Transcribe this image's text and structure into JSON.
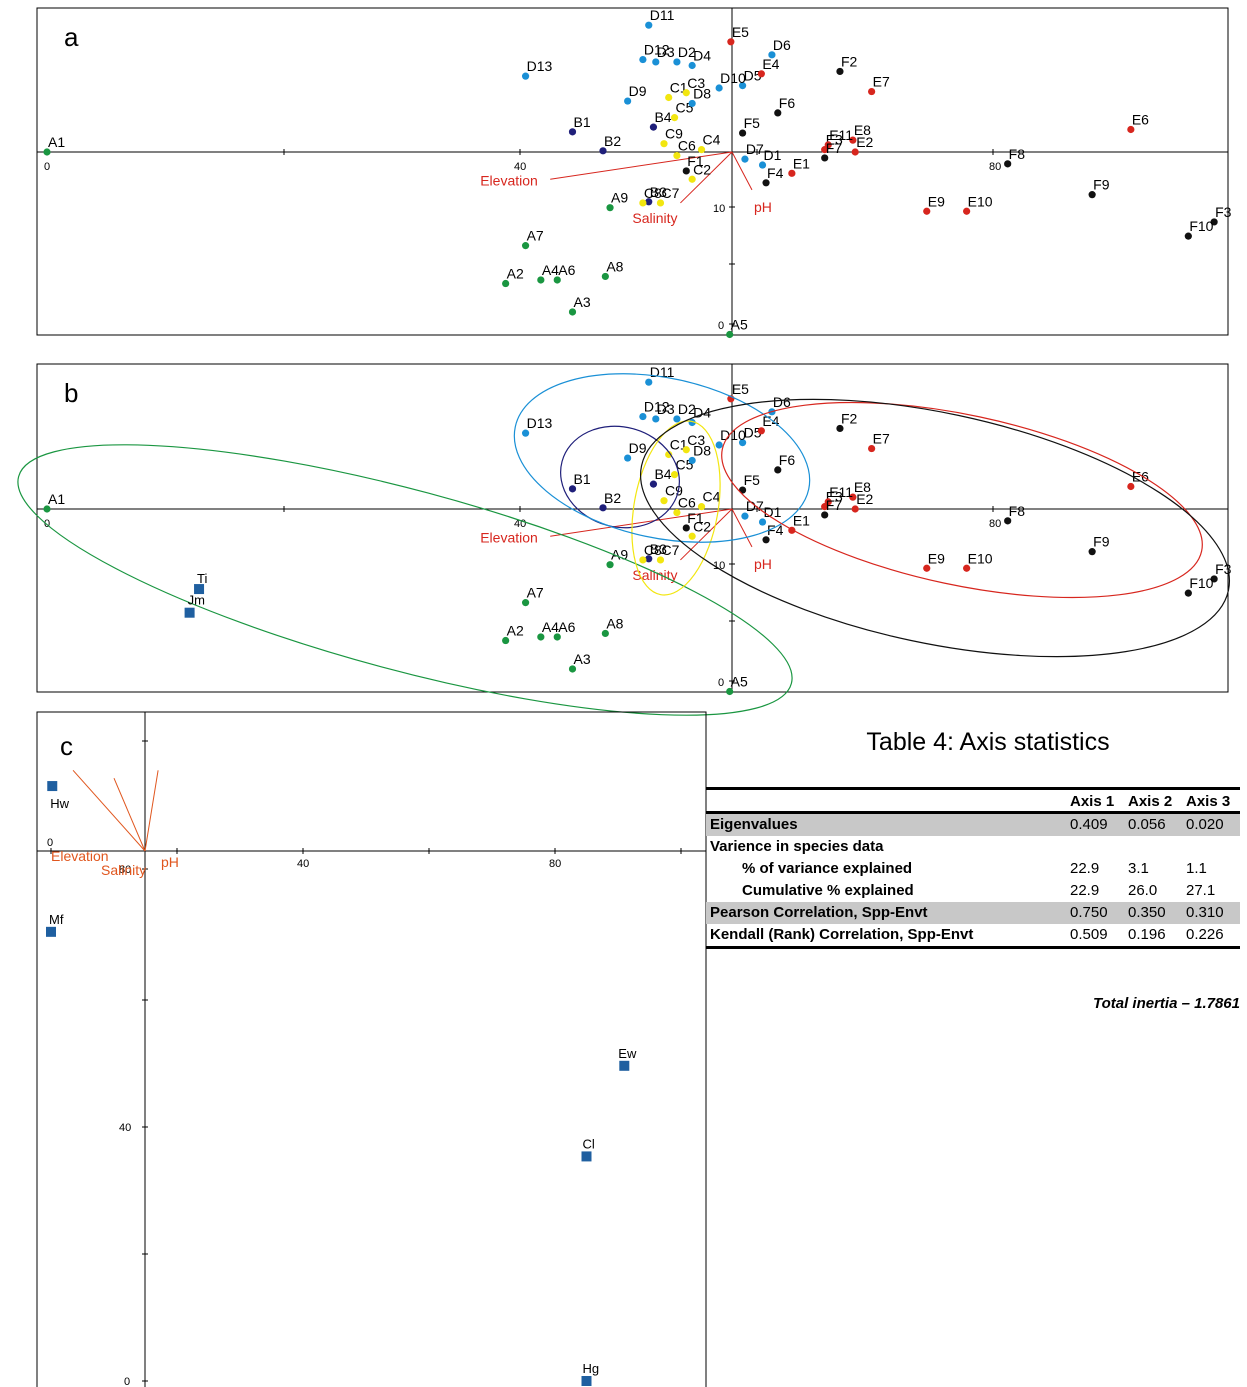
{
  "chart_data": [
    {
      "panel": "a",
      "type": "scatter",
      "ticks": {
        "axis1": [
          "0",
          "40",
          "80"
        ],
        "axis2": [
          "10",
          "0"
        ]
      },
      "series": [
        {
          "group": "A",
          "color": "#1a9641",
          "points": [
            {
              "label": "A1",
              "x": 0.0,
              "y": 0.0
            },
            {
              "label": "A2",
              "x": 39.1,
              "y": -11.1
            },
            {
              "label": "A3",
              "x": 44.8,
              "y": -13.5
            },
            {
              "label": "A4",
              "x": 42.1,
              "y": -10.8
            },
            {
              "label": "A5",
              "x": 58.2,
              "y": -15.4
            },
            {
              "label": "A6",
              "x": 43.5,
              "y": -10.8
            },
            {
              "label": "A7",
              "x": 40.8,
              "y": -7.9
            },
            {
              "label": "A8",
              "x": 47.6,
              "y": -10.5
            },
            {
              "label": "A9",
              "x": 48.0,
              "y": -4.7
            }
          ]
        },
        {
          "group": "B",
          "color": "#1f1f7a",
          "points": [
            {
              "label": "B1",
              "x": 44.8,
              "y": 1.7
            },
            {
              "label": "B2",
              "x": 47.4,
              "y": 0.1
            },
            {
              "label": "B3",
              "x": 51.3,
              "y": -4.2
            },
            {
              "label": "B4",
              "x": 51.7,
              "y": 2.1
            }
          ]
        },
        {
          "group": "C",
          "color": "#f2e610",
          "points": [
            {
              "label": "C1",
              "x": 53.0,
              "y": 4.6
            },
            {
              "label": "C2",
              "x": 55.0,
              "y": -2.3
            },
            {
              "label": "C3",
              "x": 54.5,
              "y": 5.0
            },
            {
              "label": "C4",
              "x": 55.8,
              "y": 0.2
            },
            {
              "label": "C5",
              "x": 53.5,
              "y": 2.9
            },
            {
              "label": "C6",
              "x": 53.7,
              "y": -0.3
            },
            {
              "label": "C7",
              "x": 52.3,
              "y": -4.3
            },
            {
              "label": "C8",
              "x": 50.8,
              "y": -4.3
            },
            {
              "label": "C9",
              "x": 52.6,
              "y": 0.7
            }
          ]
        },
        {
          "group": "D",
          "color": "#1a90d6",
          "points": [
            {
              "label": "D1",
              "x": 61.0,
              "y": -1.1
            },
            {
              "label": "D2",
              "x": 53.7,
              "y": 7.6
            },
            {
              "label": "D3",
              "x": 51.9,
              "y": 7.6
            },
            {
              "label": "D4",
              "x": 55.0,
              "y": 7.3
            },
            {
              "label": "D5",
              "x": 59.3,
              "y": 5.6
            },
            {
              "label": "D6",
              "x": 61.8,
              "y": 8.2
            },
            {
              "label": "D7",
              "x": 59.5,
              "y": -0.6
            },
            {
              "label": "D8",
              "x": 55.0,
              "y": 4.1
            },
            {
              "label": "D9",
              "x": 49.5,
              "y": 4.3
            },
            {
              "label": "D10",
              "x": 57.3,
              "y": 5.4
            },
            {
              "label": "D11",
              "x": 51.3,
              "y": 10.7
            },
            {
              "label": "D12",
              "x": 50.8,
              "y": 7.8
            },
            {
              "label": "D13",
              "x": 40.8,
              "y": 6.4
            }
          ]
        },
        {
          "group": "E",
          "color": "#d7261e",
          "points": [
            {
              "label": "E1",
              "x": 63.5,
              "y": -1.8
            },
            {
              "label": "E2",
              "x": 68.9,
              "y": 0.0
            },
            {
              "label": "E3",
              "x": 66.3,
              "y": 0.2
            },
            {
              "label": "E4",
              "x": 60.9,
              "y": 6.6
            },
            {
              "label": "E5",
              "x": 58.3,
              "y": 9.3
            },
            {
              "label": "E6",
              "x": 92.4,
              "y": 1.9
            },
            {
              "label": "E7",
              "x": 70.3,
              "y": 5.1
            },
            {
              "label": "E8",
              "x": 68.7,
              "y": 1.0
            },
            {
              "label": "E9",
              "x": 75.0,
              "y": -5.0
            },
            {
              "label": "E10",
              "x": 78.4,
              "y": -5.0
            },
            {
              "label": "E11",
              "x": 66.6,
              "y": 0.6
            }
          ]
        },
        {
          "group": "F",
          "color": "#111111",
          "points": [
            {
              "label": "F1",
              "x": 54.5,
              "y": -1.6
            },
            {
              "label": "F2",
              "x": 67.6,
              "y": 6.8
            },
            {
              "label": "F3",
              "x": 99.5,
              "y": -5.9
            },
            {
              "label": "F4",
              "x": 61.3,
              "y": -2.6
            },
            {
              "label": "F5",
              "x": 59.3,
              "y": 1.6
            },
            {
              "label": "F6",
              "x": 62.3,
              "y": 3.3
            },
            {
              "label": "F7",
              "x": 66.3,
              "y": -0.5
            },
            {
              "label": "F8",
              "x": 81.9,
              "y": -1.0
            },
            {
              "label": "F9",
              "x": 89.1,
              "y": -3.6
            },
            {
              "label": "F10",
              "x": 97.3,
              "y": -7.1
            }
          ]
        }
      ],
      "env_vectors": [
        {
          "label": "Elevation",
          "x": 42.9,
          "y": -2.3
        },
        {
          "label": "Salinity",
          "x": 54.0,
          "y": -4.3
        },
        {
          "label": "pH",
          "x": 60.1,
          "y": -3.2
        }
      ],
      "env_color": "#d7261e"
    },
    {
      "panel": "b",
      "type": "scatter",
      "note_same_points_as_panel": "a",
      "ticks": {
        "axis1": [
          "0",
          "40",
          "80"
        ],
        "axis2": [
          "10",
          "0"
        ]
      },
      "group_ellipses": [
        {
          "group": "A",
          "color": "#1a9641"
        },
        {
          "group": "B",
          "color": "#1f1f7a"
        },
        {
          "group": "C",
          "color": "#f2e610"
        },
        {
          "group": "D",
          "color": "#1a90d6"
        },
        {
          "group": "E",
          "color": "#d7261e"
        },
        {
          "group": "F",
          "color": "#111111"
        }
      ]
    },
    {
      "panel": "c",
      "type": "scatter",
      "ticks": {
        "axis1": [
          "0",
          "40",
          "80"
        ],
        "axis2": [
          "80",
          "40",
          "0"
        ]
      },
      "marker_color": "#1f5fa0",
      "species": [
        {
          "label": "Ti",
          "x": 23.5,
          "y": 100.5
        },
        {
          "label": "Jm",
          "x": 22.0,
          "y": 97.5
        },
        {
          "label": "Hw",
          "x": 0.2,
          "y": 75.5
        },
        {
          "label": "Mf",
          "x": 0.0,
          "y": 57.0
        },
        {
          "label": "Ew",
          "x": 91.0,
          "y": 40.0
        },
        {
          "label": "Cl",
          "x": 85.0,
          "y": 28.5
        },
        {
          "label": "Hg",
          "x": 85.0,
          "y": 0.0
        }
      ],
      "env_vectors": [
        {
          "label": "Elevation",
          "x": 3.5,
          "y": 77.5
        },
        {
          "label": "Salinity",
          "x": 10.0,
          "y": 76.5
        },
        {
          "label": "pH",
          "x": 17.0,
          "y": 77.5
        }
      ],
      "env_color": "#e0561e"
    }
  ],
  "table": {
    "title": "Table 4: Axis statistics",
    "columns": [
      "",
      "Axis 1",
      "Axis 2",
      "Axis 3"
    ],
    "rows": [
      {
        "label": "Eigenvalues",
        "values": [
          "0.409",
          "0.056",
          "0.020"
        ],
        "shaded": true,
        "indent": false
      },
      {
        "label": "Varience in species data",
        "values": [
          "",
          "",
          ""
        ],
        "shaded": false,
        "indent": false
      },
      {
        "label": "% of variance explained",
        "values": [
          "22.9",
          "3.1",
          "1.1"
        ],
        "shaded": false,
        "indent": true
      },
      {
        "label": "Cumulative % explained",
        "values": [
          "22.9",
          "26.0",
          "27.1"
        ],
        "shaded": false,
        "indent": true
      },
      {
        "label": "Pearson Correlation, Spp-Envt",
        "values": [
          "0.750",
          "0.350",
          "0.310"
        ],
        "shaded": true,
        "indent": false
      },
      {
        "label": "Kendall (Rank) Correlation, Spp-Envt",
        "values": [
          "0.509",
          "0.196",
          "0.226"
        ],
        "shaded": false,
        "indent": false
      }
    ],
    "footnote": "Total inertia – 1.7861"
  }
}
